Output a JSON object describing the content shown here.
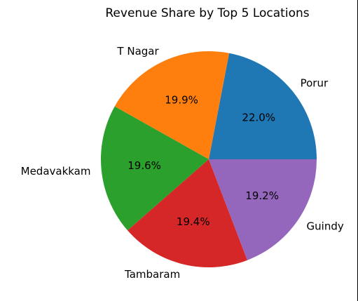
{
  "chart_data": {
    "type": "pie",
    "title": "Revenue Share by Top 5 Locations",
    "start_angle_deg": 0,
    "direction": "counterclockwise",
    "slices": [
      {
        "label": "Porur",
        "value": 22.0,
        "pct_label": "22.0%",
        "color": "#1f77b4"
      },
      {
        "label": "T Nagar",
        "value": 19.9,
        "pct_label": "19.9%",
        "color": "#ff7f0e"
      },
      {
        "label": "Medavakkam",
        "value": 19.6,
        "pct_label": "19.6%",
        "color": "#2ca02c"
      },
      {
        "label": "Tambaram",
        "value": 19.4,
        "pct_label": "19.4%",
        "color": "#d62728"
      },
      {
        "label": "Guindy",
        "value": 19.2,
        "pct_label": "19.2%",
        "color": "#9467bd"
      }
    ],
    "legend": "none"
  }
}
